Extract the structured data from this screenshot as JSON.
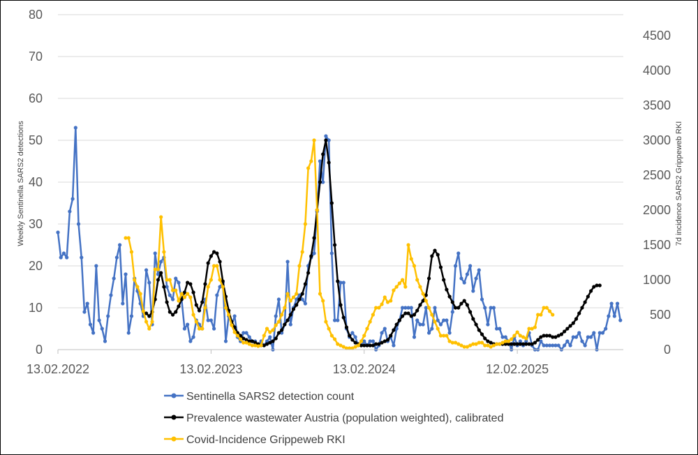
{
  "chart_data": {
    "type": "line",
    "title": "",
    "xlabel": "",
    "ylabel": "Weekly Sentinella SARS2 detections",
    "y2label": "7d incidence SARS2 Grippeweb RKI",
    "ylim": [
      0,
      80
    ],
    "y2lim": [
      0,
      4800
    ],
    "yticks": [
      0,
      10,
      20,
      30,
      40,
      50,
      60,
      70,
      80
    ],
    "y2ticks": [
      0,
      500,
      1000,
      1500,
      2000,
      2500,
      3000,
      3500,
      4000,
      4500
    ],
    "xlim": [
      0,
      192
    ],
    "xticks": [
      {
        "label": "13.02.2022",
        "week": 0
      },
      {
        "label": "13.02.2023",
        "week": 52
      },
      {
        "label": "13.02.2024",
        "week": 104
      },
      {
        "label": "12.02.2025",
        "week": 156
      }
    ],
    "grid": true,
    "legend": "bottom",
    "series": [
      {
        "name": "Sentinella SARS2 detection count",
        "axis": "left",
        "color": "#4472C4",
        "start_week": 0,
        "values": [
          28,
          22,
          23,
          22,
          33,
          36,
          53,
          30,
          22,
          9,
          11,
          6,
          4,
          20,
          7,
          5,
          2,
          8,
          13,
          17,
          22,
          25,
          11,
          18,
          4,
          8,
          17,
          14,
          11,
          8,
          19,
          16,
          6,
          23,
          18,
          21,
          22,
          15,
          13,
          12,
          17,
          16,
          12,
          5,
          6,
          2,
          3,
          7,
          6,
          5,
          12,
          7,
          7,
          5,
          13,
          15,
          16,
          2,
          8,
          6,
          8,
          3,
          2,
          4,
          4,
          3,
          2,
          2,
          1,
          2,
          1,
          2,
          3,
          0,
          8,
          12,
          4,
          6,
          21,
          6,
          10,
          12,
          13,
          12,
          11,
          20,
          22,
          23,
          33,
          45,
          40,
          51,
          50,
          23,
          7,
          7,
          16,
          16,
          5,
          3,
          4,
          3,
          1,
          1,
          2,
          1,
          2,
          2,
          0,
          1,
          4,
          5,
          2,
          3,
          1,
          5,
          7,
          10,
          10,
          10,
          10,
          3,
          7,
          6,
          6,
          10,
          4,
          5,
          10,
          7,
          6,
          7,
          7,
          4,
          9,
          20,
          23,
          17,
          16,
          18,
          20,
          14,
          17,
          19,
          12,
          10,
          6,
          10,
          10,
          5,
          5,
          3,
          3,
          2,
          0,
          3,
          1,
          2,
          1,
          2,
          4,
          1,
          0,
          0,
          2,
          1,
          1,
          1,
          1,
          1,
          1,
          0,
          1,
          2,
          1,
          3,
          3,
          4,
          2,
          1,
          3,
          3,
          4,
          0,
          4,
          4,
          5,
          8,
          11,
          8,
          11,
          7
        ]
      },
      {
        "name": "Prevalence wastewater Austria (population weighted), calibrated",
        "axis": "right",
        "color": "#000000",
        "start_week": 30,
        "values": [
          520,
          480,
          540,
          720,
          1000,
          1100,
          900,
          680,
          540,
          500,
          540,
          620,
          720,
          820,
          960,
          940,
          820,
          640,
          560,
          680,
          940,
          1240,
          1340,
          1400,
          1380,
          1260,
          980,
          760,
          560,
          400,
          320,
          240,
          200,
          160,
          140,
          120,
          120,
          100,
          80,
          60,
          60,
          80,
          100,
          120,
          160,
          240,
          280,
          360,
          420,
          500,
          580,
          640,
          720,
          800,
          940,
          1100,
          1340,
          1600,
          2000,
          2400,
          2800,
          3000,
          2680,
          2100,
          1500,
          980,
          640,
          460,
          320,
          200,
          140,
          100,
          80,
          60,
          60,
          60,
          60,
          60,
          80,
          80,
          100,
          120,
          140,
          200,
          280,
          360,
          420,
          480,
          520,
          520,
          480,
          500,
          560,
          640,
          700,
          780,
          1020,
          1340,
          1420,
          1360,
          1180,
          1000,
          860,
          760,
          680,
          600,
          600,
          660,
          700,
          640,
          540,
          440,
          360,
          280,
          220,
          160,
          120,
          100,
          80,
          80,
          80,
          80,
          80,
          80,
          80,
          80,
          80,
          80,
          80,
          80,
          80,
          80,
          100,
          140,
          180,
          200,
          200,
          200,
          180,
          180,
          200,
          220,
          260,
          300,
          340,
          380,
          440,
          520,
          600,
          680,
          760,
          840,
          900,
          920,
          920
        ]
      },
      {
        "name": "Covid-Incidence Grippeweb RKI",
        "axis": "right",
        "color": "#FFC000",
        "start_week": 23,
        "values": [
          1600,
          1600,
          1400,
          1000,
          900,
          800,
          550,
          400,
          300,
          400,
          1150,
          1150,
          1900,
          1400,
          1000,
          1000,
          850,
          850,
          700,
          800,
          750,
          800,
          750,
          500,
          400,
          300,
          300,
          600,
          900,
          1000,
          1200,
          1200,
          1000,
          900,
          600,
          500,
          350,
          250,
          200,
          150,
          100,
          100,
          80,
          60,
          60,
          50,
          60,
          200,
          300,
          250,
          280,
          350,
          400,
          500,
          600,
          800,
          700,
          750,
          800,
          1200,
          1400,
          1800,
          2600,
          2700,
          3000,
          2000,
          800,
          700,
          400,
          300,
          200,
          150,
          80,
          60,
          40,
          20,
          20,
          20,
          40,
          60,
          120,
          200,
          300,
          400,
          500,
          600,
          600,
          650,
          750,
          680,
          700,
          850,
          900,
          950,
          1000,
          900,
          1500,
          1300,
          1200,
          1000,
          900,
          800,
          700,
          600,
          500,
          400,
          300,
          200,
          200,
          200,
          120,
          100,
          100,
          80,
          60,
          40,
          40,
          60,
          80,
          80,
          100,
          100,
          60,
          60,
          40,
          60,
          80,
          80,
          100,
          120,
          120,
          150,
          200,
          250,
          200,
          180,
          160,
          300,
          300,
          320,
          500,
          500,
          600,
          600,
          550,
          500
        ]
      }
    ]
  }
}
